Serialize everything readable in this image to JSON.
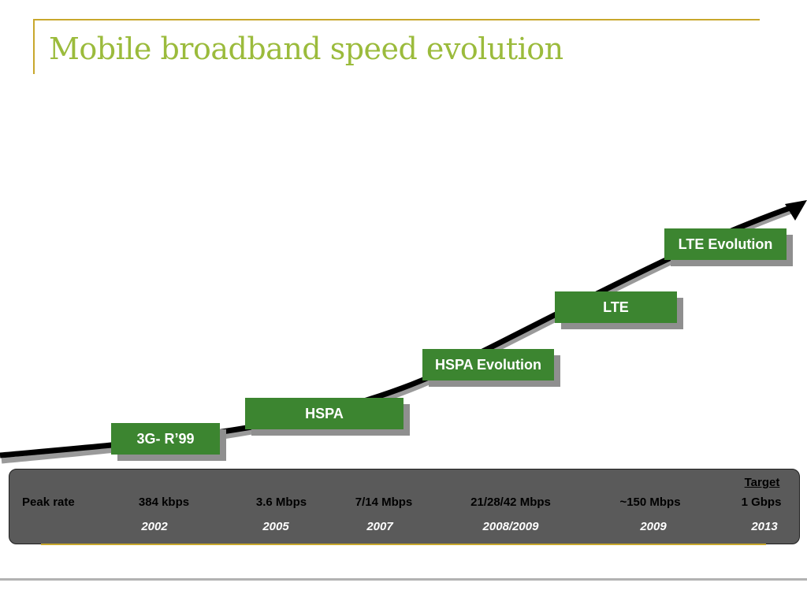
{
  "slide": {
    "title": "Mobile broadband speed evolution"
  },
  "stages": [
    {
      "label": "3G- R’99"
    },
    {
      "label": "HSPA"
    },
    {
      "label": "HSPA Evolution"
    },
    {
      "label": "LTE"
    },
    {
      "label": "LTE Evolution"
    }
  ],
  "table": {
    "row_label": "Peak rate",
    "target_label": "Target",
    "rates": [
      "384 kbps",
      "3.6 Mbps",
      "7/14 Mbps",
      "21/28/42 Mbps",
      "~150 Mbps",
      "1 Gbps"
    ],
    "years": [
      "2002",
      "2005",
      "2007",
      "2008/2009",
      "2009",
      "2013"
    ]
  },
  "colors": {
    "title": "#9bbb3c",
    "accent_rule": "#c8a72c",
    "stage_box": "#3c8530",
    "panel": "#5a5a5a",
    "arrow": "#000000"
  }
}
